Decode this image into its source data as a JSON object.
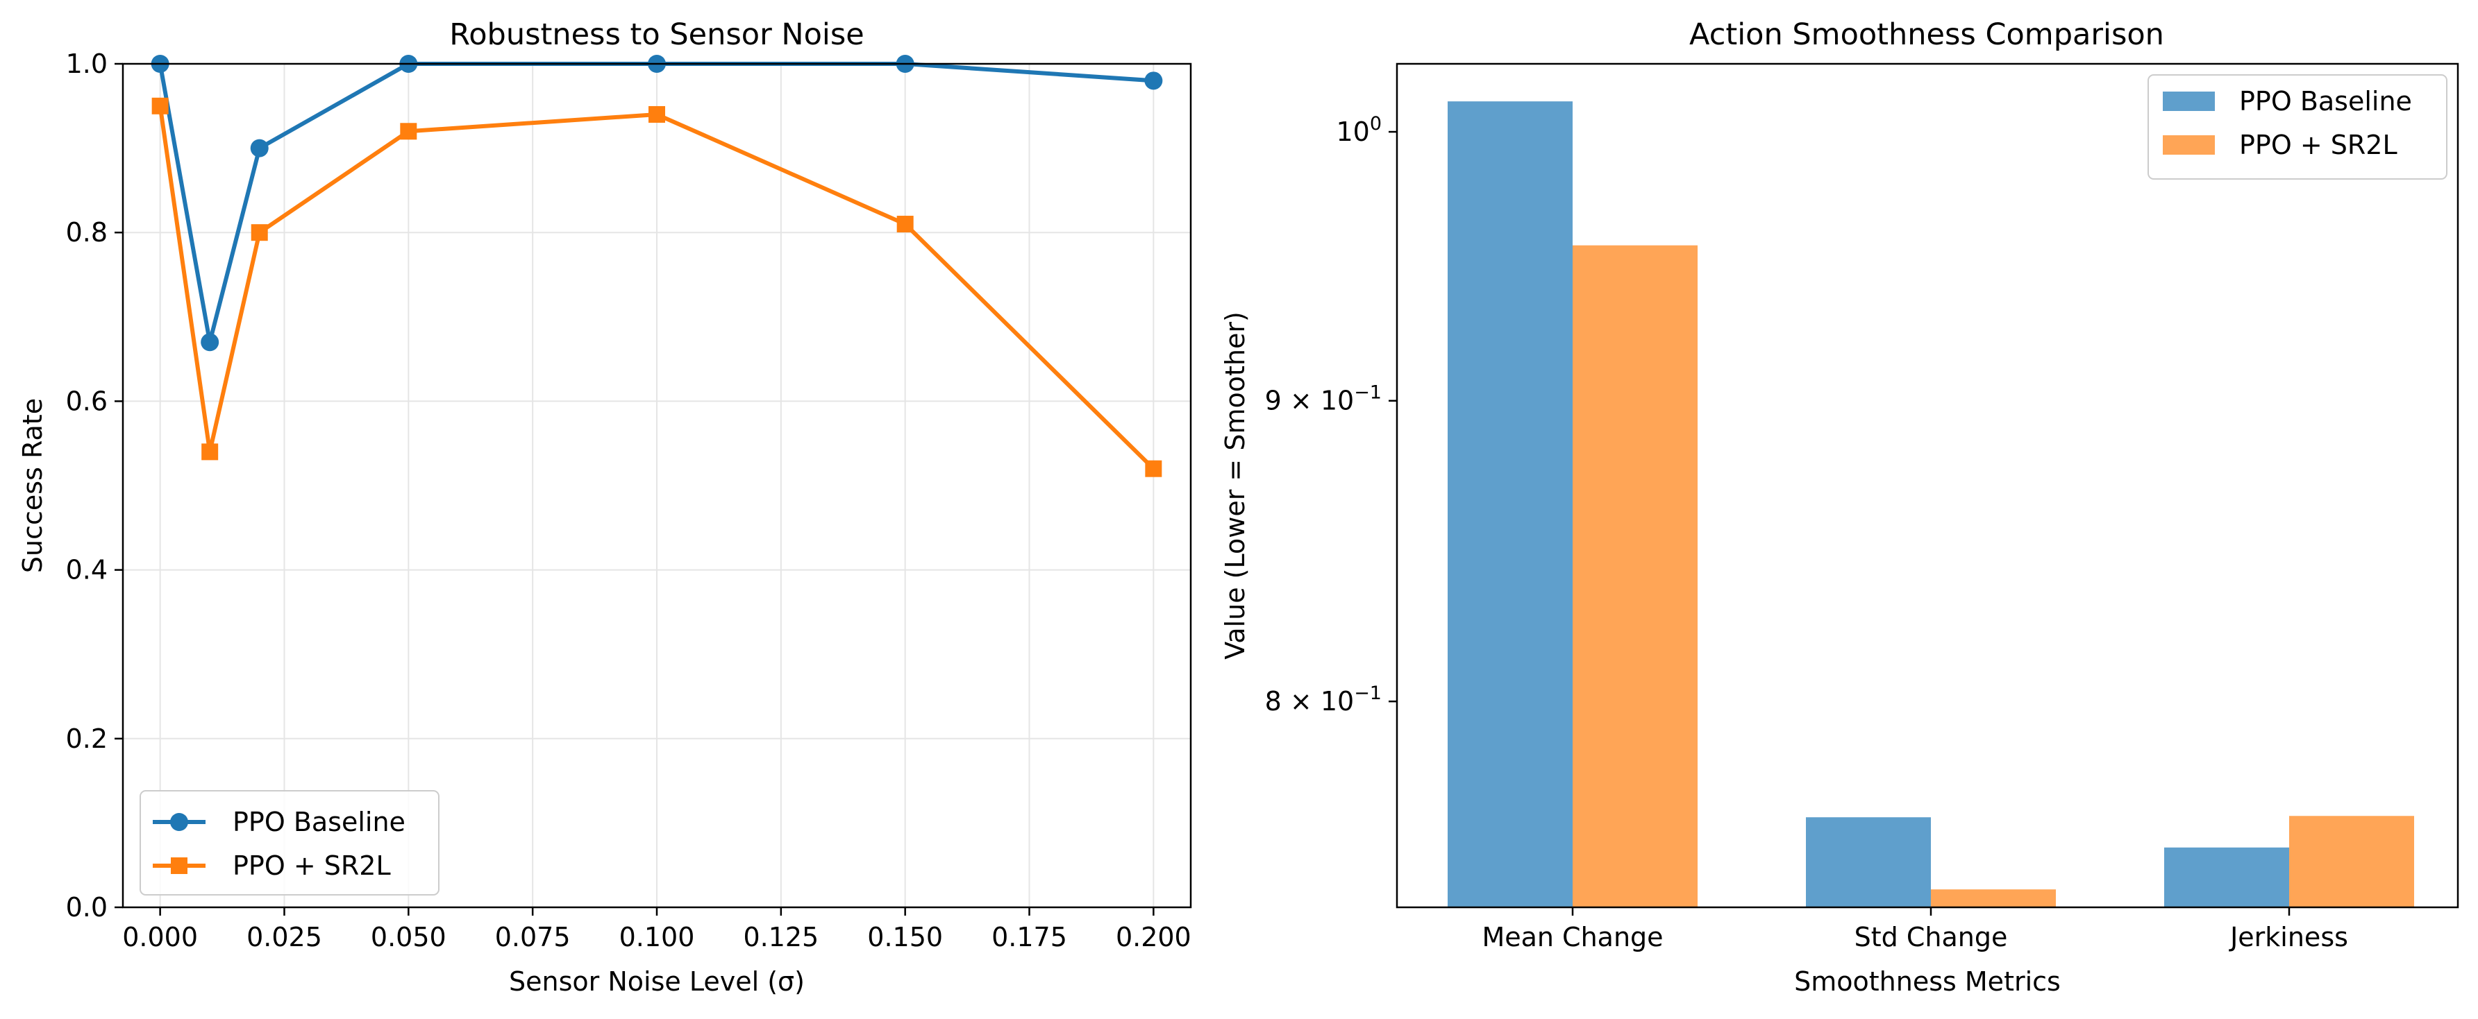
{
  "chart_data": [
    {
      "type": "line",
      "title": "Robustness to Sensor Noise",
      "xlabel": "Sensor Noise Level (σ)",
      "ylabel": "Success Rate",
      "xlim": [
        -0.0075,
        0.2075
      ],
      "ylim": [
        0.0,
        1.0
      ],
      "grid": true,
      "legend_position": "lower-left",
      "x_ticks": [
        0.0,
        0.025,
        0.05,
        0.075,
        0.1,
        0.125,
        0.15,
        0.175,
        0.2
      ],
      "x_tick_labels": [
        "0.000",
        "0.025",
        "0.050",
        "0.075",
        "0.100",
        "0.125",
        "0.150",
        "0.175",
        "0.200"
      ],
      "y_ticks": [
        0.0,
        0.2,
        0.4,
        0.6,
        0.8,
        1.0
      ],
      "y_tick_labels": [
        "0.0",
        "0.2",
        "0.4",
        "0.6",
        "0.8",
        "1.0"
      ],
      "x": [
        0.0,
        0.01,
        0.02,
        0.05,
        0.1,
        0.15,
        0.2
      ],
      "series": [
        {
          "name": "PPO Baseline",
          "values": [
            1.0,
            0.67,
            0.9,
            1.0,
            1.0,
            1.0,
            0.98
          ],
          "color": "#1f77b4",
          "marker": "circle"
        },
        {
          "name": "PPO + SR2L",
          "values": [
            0.95,
            0.54,
            0.8,
            0.92,
            0.94,
            0.81,
            0.52
          ],
          "color": "#ff7f0e",
          "marker": "square"
        }
      ]
    },
    {
      "type": "bar",
      "title": "Action Smoothness Comparison",
      "xlabel": "Smoothness Metrics",
      "ylabel": "Value (Lower = Smoother)",
      "y_scale": "log",
      "ylim": [
        0.738,
        1.027
      ],
      "legend_position": "upper-right",
      "categories": [
        "Mean Change",
        "Std Change",
        "Jerkiness"
      ],
      "y_ticks": [
        {
          "value": 1.0,
          "base": "10",
          "exp": "0"
        },
        {
          "value": 0.9,
          "base": "9 × 10",
          "exp": "−1"
        },
        {
          "value": 0.8,
          "base": "8 × 10",
          "exp": "−1"
        }
      ],
      "series": [
        {
          "name": "PPO Baseline",
          "values": [
            1.012,
            0.7645,
            0.7555
          ],
          "color": "#5f9fcc"
        },
        {
          "name": "PPO + SR2L",
          "values": [
            0.9565,
            0.7432,
            0.7649
          ],
          "color": "#ffa556"
        }
      ]
    }
  ]
}
